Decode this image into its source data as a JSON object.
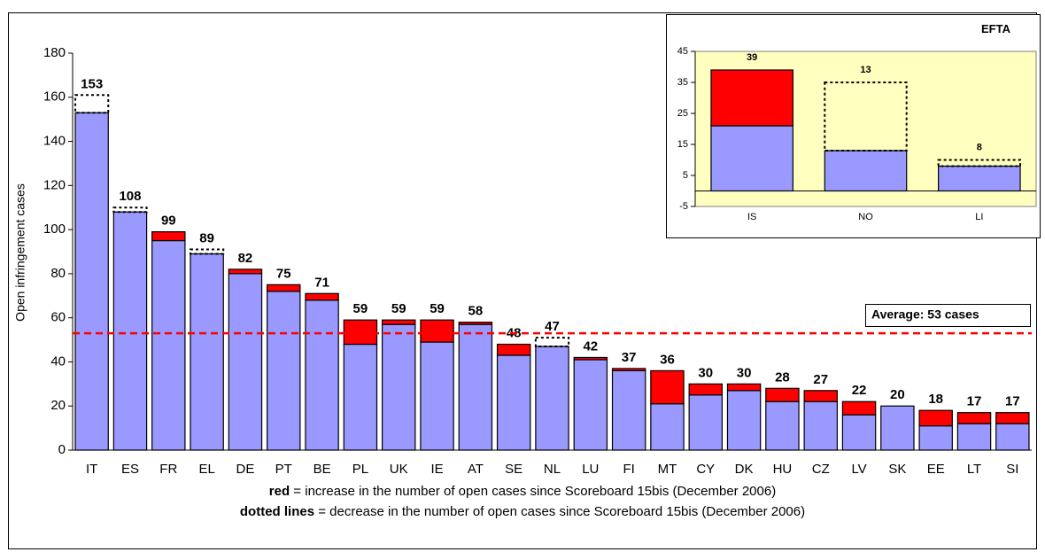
{
  "chart_data": [
    {
      "type": "bar",
      "y_label": "Open infringement cases",
      "categories": [
        "IT",
        "ES",
        "FR",
        "EL",
        "DE",
        "PT",
        "BE",
        "PL",
        "UK",
        "IE",
        "AT",
        "SE",
        "NL",
        "LU",
        "FI",
        "MT",
        "CY",
        "DK",
        "HU",
        "CZ",
        "LV",
        "SK",
        "EE",
        "LT",
        "SI"
      ],
      "values": [
        153,
        108,
        99,
        89,
        82,
        75,
        71,
        59,
        59,
        59,
        58,
        48,
        47,
        42,
        37,
        36,
        30,
        30,
        28,
        27,
        22,
        20,
        18,
        17,
        17
      ],
      "increase": [
        0,
        0,
        4,
        0,
        2,
        3,
        3,
        11,
        2,
        10,
        1,
        5,
        0,
        1,
        1,
        15,
        5,
        3,
        6,
        5,
        6,
        0,
        7,
        5,
        5
      ],
      "decrease": [
        8,
        2,
        0,
        2,
        0,
        0,
        0,
        0,
        0,
        0,
        0,
        0,
        4,
        0,
        0,
        0,
        0,
        0,
        0,
        0,
        0,
        0,
        0,
        0,
        0
      ],
      "color": "#9999ff",
      "increase_color": "#ff0000",
      "average": {
        "value": 53,
        "label": "Average: 53 cases"
      },
      "average_color": "#ff0000",
      "ylim": [
        0,
        180
      ],
      "yticks": [
        0,
        20,
        40,
        60,
        80,
        100,
        120,
        140,
        160,
        180
      ]
    },
    {
      "type": "bar",
      "title": "EFTA",
      "categories": [
        "IS",
        "NO",
        "LI"
      ],
      "values": [
        39,
        13,
        8
      ],
      "increase": [
        18,
        0,
        0
      ],
      "decrease": [
        0,
        22,
        2
      ],
      "color": "#9999ff",
      "increase_color": "#ff0000",
      "background": "#ffffc0",
      "ylim": [
        -5,
        45
      ],
      "yticks": [
        -5,
        5,
        15,
        25,
        35,
        45
      ]
    }
  ],
  "notes": [
    {
      "bold": "red",
      "text": " = increase in the number of open cases since Scoreboard 15bis (December 2006)"
    },
    {
      "bold": "dotted lines",
      "text": " = decrease in the number of open cases since Scoreboard 15bis (December 2006)"
    }
  ]
}
